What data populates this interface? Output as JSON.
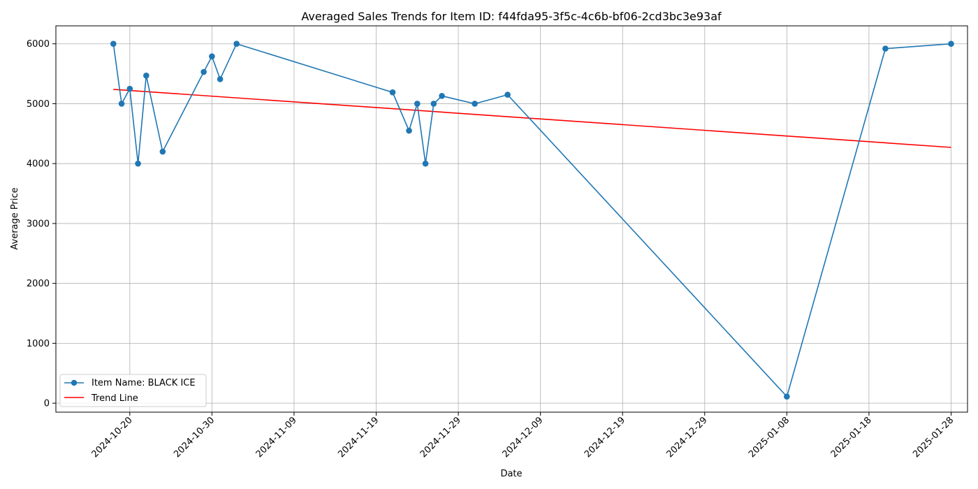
{
  "chart_data": {
    "type": "line",
    "title": "Averaged Sales Trends for Item ID: f44fda95-3f5c-4c6b-bf06-2cd3bc3e93af",
    "xlabel": "Date",
    "ylabel": "Average Price",
    "x_axis_type": "date",
    "xlim": [
      "2024-10-11",
      "2025-01-30"
    ],
    "ylim": [
      -150,
      6300
    ],
    "x_ticks": [
      "2024-10-20",
      "2024-10-30",
      "2024-11-09",
      "2024-11-19",
      "2024-11-29",
      "2024-12-09",
      "2024-12-19",
      "2024-12-29",
      "2025-01-08",
      "2025-01-18",
      "2025-01-28"
    ],
    "y_ticks": [
      0,
      1000,
      2000,
      3000,
      4000,
      5000,
      6000
    ],
    "grid": true,
    "legend_position": "lower-left",
    "series": [
      {
        "name": "Item Name: BLACK ICE",
        "kind": "line-with-markers",
        "color": "#1f77b4",
        "x": [
          "2024-10-18",
          "2024-10-19",
          "2024-10-20",
          "2024-10-21",
          "2024-10-22",
          "2024-10-24",
          "2024-10-29",
          "2024-10-30",
          "2024-10-31",
          "2024-11-02",
          "2024-11-21",
          "2024-11-23",
          "2024-11-24",
          "2024-11-25",
          "2024-11-26",
          "2024-11-27",
          "2024-12-01",
          "2024-12-05",
          "2025-01-08",
          "2025-01-20",
          "2025-01-28"
        ],
        "y": [
          6000,
          5000,
          5250,
          4000,
          5470,
          4200,
          5530,
          5790,
          5410,
          6000,
          5190,
          4550,
          5000,
          4000,
          5000,
          5130,
          5000,
          5150,
          110,
          5920,
          6000
        ]
      },
      {
        "name": "Trend Line",
        "kind": "line",
        "color": "#ff0000",
        "x": [
          "2024-10-18",
          "2025-01-28"
        ],
        "y": [
          5240,
          4270
        ]
      }
    ]
  }
}
